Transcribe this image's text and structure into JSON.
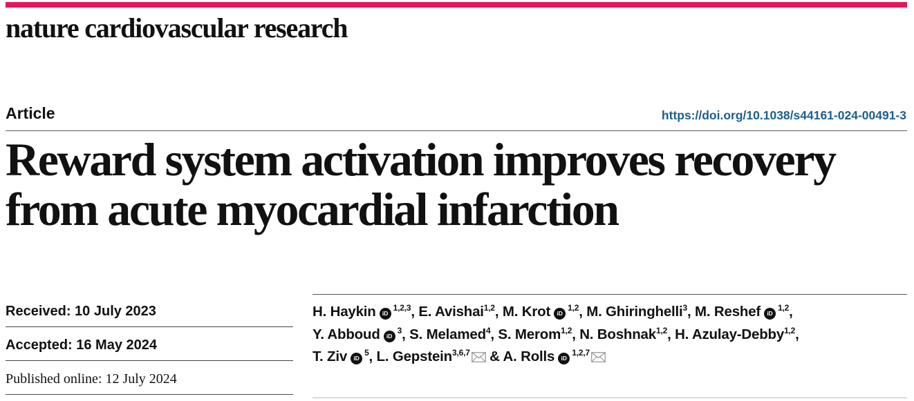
{
  "colors": {
    "accent": "#e2165a",
    "link": "#1b5f8f"
  },
  "header": {
    "journal": "nature cardiovascular research",
    "article_type": "Article",
    "doi": "https://doi.org/10.1038/s44161-024-00491-3"
  },
  "title_lines": [
    "Reward system activation improves recovery",
    "from acute myocardial infarction"
  ],
  "dates": {
    "received": "Received: 10 July 2023",
    "accepted": "Accepted: 16 May 2024",
    "published": "Published online: 12 July 2024"
  },
  "authors": [
    {
      "name": "H. Haykin",
      "orcid": true,
      "sup": "1,2,3",
      "sep": ", "
    },
    {
      "name": "E. Avishai",
      "orcid": false,
      "sup": "1,2",
      "sep": ", "
    },
    {
      "name": "M. Krot",
      "orcid": true,
      "sup": "1,2",
      "sep": ", "
    },
    {
      "name": "M. Ghiringhelli",
      "orcid": false,
      "sup": "3",
      "sep": ", "
    },
    {
      "name": "M. Reshef",
      "orcid": true,
      "sup": "1,2",
      "sep": ","
    },
    {
      "name": "Y. Abboud",
      "orcid": true,
      "sup": "3",
      "sep": ", "
    },
    {
      "name": "S. Melamed",
      "orcid": false,
      "sup": "4",
      "sep": ", "
    },
    {
      "name": "S. Merom",
      "orcid": false,
      "sup": "1,2",
      "sep": ", "
    },
    {
      "name": "N. Boshnak",
      "orcid": false,
      "sup": "1,2",
      "sep": ", "
    },
    {
      "name": "H. Azulay-Debby",
      "orcid": false,
      "sup": "1,2",
      "sep": ","
    },
    {
      "name": "T. Ziv",
      "orcid": true,
      "sup": "5",
      "sep": ", "
    },
    {
      "name": "L. Gepstein",
      "orcid": false,
      "sup": "3,6,7",
      "mail": true,
      "sep": " & "
    },
    {
      "name": "A. Rolls",
      "orcid": true,
      "sup": "1,2,7",
      "mail": true,
      "sep": ""
    }
  ],
  "icons": {
    "orcid": "orcid-icon",
    "mail": "mail-icon",
    "orcid_text": "iD"
  }
}
